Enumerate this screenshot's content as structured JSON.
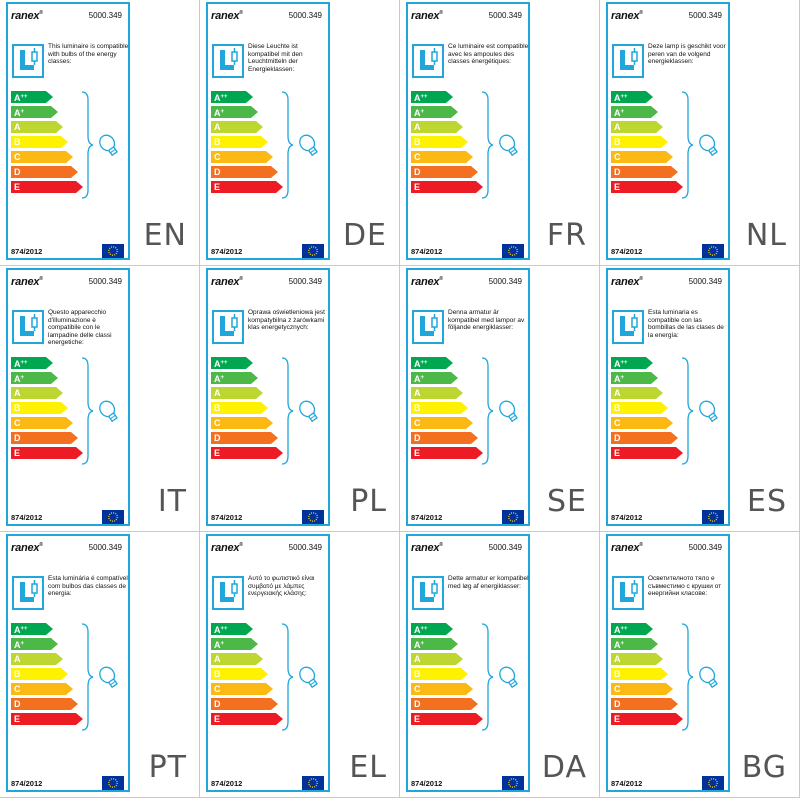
{
  "colors": {
    "label_border": "#21a6dc",
    "classes": [
      "#00a650",
      "#4cb848",
      "#bed630",
      "#fff200",
      "#fdb913",
      "#f37021",
      "#ed1c24"
    ]
  },
  "energy_classes": [
    {
      "letter": "A",
      "sup": "++"
    },
    {
      "letter": "A",
      "sup": "+"
    },
    {
      "letter": "A",
      "sup": ""
    },
    {
      "letter": "B",
      "sup": ""
    },
    {
      "letter": "C",
      "sup": ""
    },
    {
      "letter": "D",
      "sup": ""
    },
    {
      "letter": "E",
      "sup": ""
    }
  ],
  "labels": [
    {
      "brand": "ranex",
      "reg_mark": "®",
      "model": "5000.349",
      "regulation": "874/2012",
      "lang": "EN",
      "text": "This luminaire is compatible with bulbs of the energy classes:"
    },
    {
      "brand": "ranex",
      "reg_mark": "®",
      "model": "5000.349",
      "regulation": "874/2012",
      "lang": "DE",
      "text": "Diese Leuchte ist kompatibel mit den Leuchtmitteln der Energieklassen:"
    },
    {
      "brand": "ranex",
      "reg_mark": "®",
      "model": "5000.349",
      "regulation": "874/2012",
      "lang": "FR",
      "text": "Ce luminaire est compatible avec les ampoules des classes énergétiques:"
    },
    {
      "brand": "ranex",
      "reg_mark": "®",
      "model": "5000.349",
      "regulation": "874/2012",
      "lang": "NL",
      "text": "Deze lamp is geschikt voor peren van de volgend energieklassen:"
    },
    {
      "brand": "ranex",
      "reg_mark": "®",
      "model": "5000.349",
      "regulation": "874/2012",
      "lang": "IT",
      "text": "Questo apparecchio d'illuminazione è compatibile con le lampadine delle classi energetiche:"
    },
    {
      "brand": "ranex",
      "reg_mark": "®",
      "model": "5000.349",
      "regulation": "874/2012",
      "lang": "PL",
      "text": "Oprawa oświetleniowa jest kompatybilna z żarówkami klas energetycznych:"
    },
    {
      "brand": "ranex",
      "reg_mark": "®",
      "model": "5000.349",
      "regulation": "874/2012",
      "lang": "SE",
      "text": "Denna armatur är kompatibel med lampor av följande energiklasser:"
    },
    {
      "brand": "ranex",
      "reg_mark": "®",
      "model": "5000.349",
      "regulation": "874/2012",
      "lang": "ES",
      "text": "Esta luminaria es compatible con las bombillas de las clases de la energía:"
    },
    {
      "brand": "ranex",
      "reg_mark": "®",
      "model": "5000.349",
      "regulation": "874/2012",
      "lang": "PT",
      "text": "Esta luminária é compatível com bulbos das classes de energia:"
    },
    {
      "brand": "ranex",
      "reg_mark": "®",
      "model": "5000.349",
      "regulation": "874/2012",
      "lang": "EL",
      "text": "Αυτό το φωτιστικό είναι συμβατό με λάμπες ενεργειακής κλάσης:"
    },
    {
      "brand": "ranex",
      "reg_mark": "®",
      "model": "5000.349",
      "regulation": "874/2012",
      "lang": "DA",
      "text": "Dette armatur er kompatibel med løg af energiklasser:"
    },
    {
      "brand": "ranex",
      "reg_mark": "®",
      "model": "5000.349",
      "regulation": "874/2012",
      "lang": "BG",
      "text": "Осветителното тяло е съвместимо с крушки от енергийни класове:"
    }
  ]
}
